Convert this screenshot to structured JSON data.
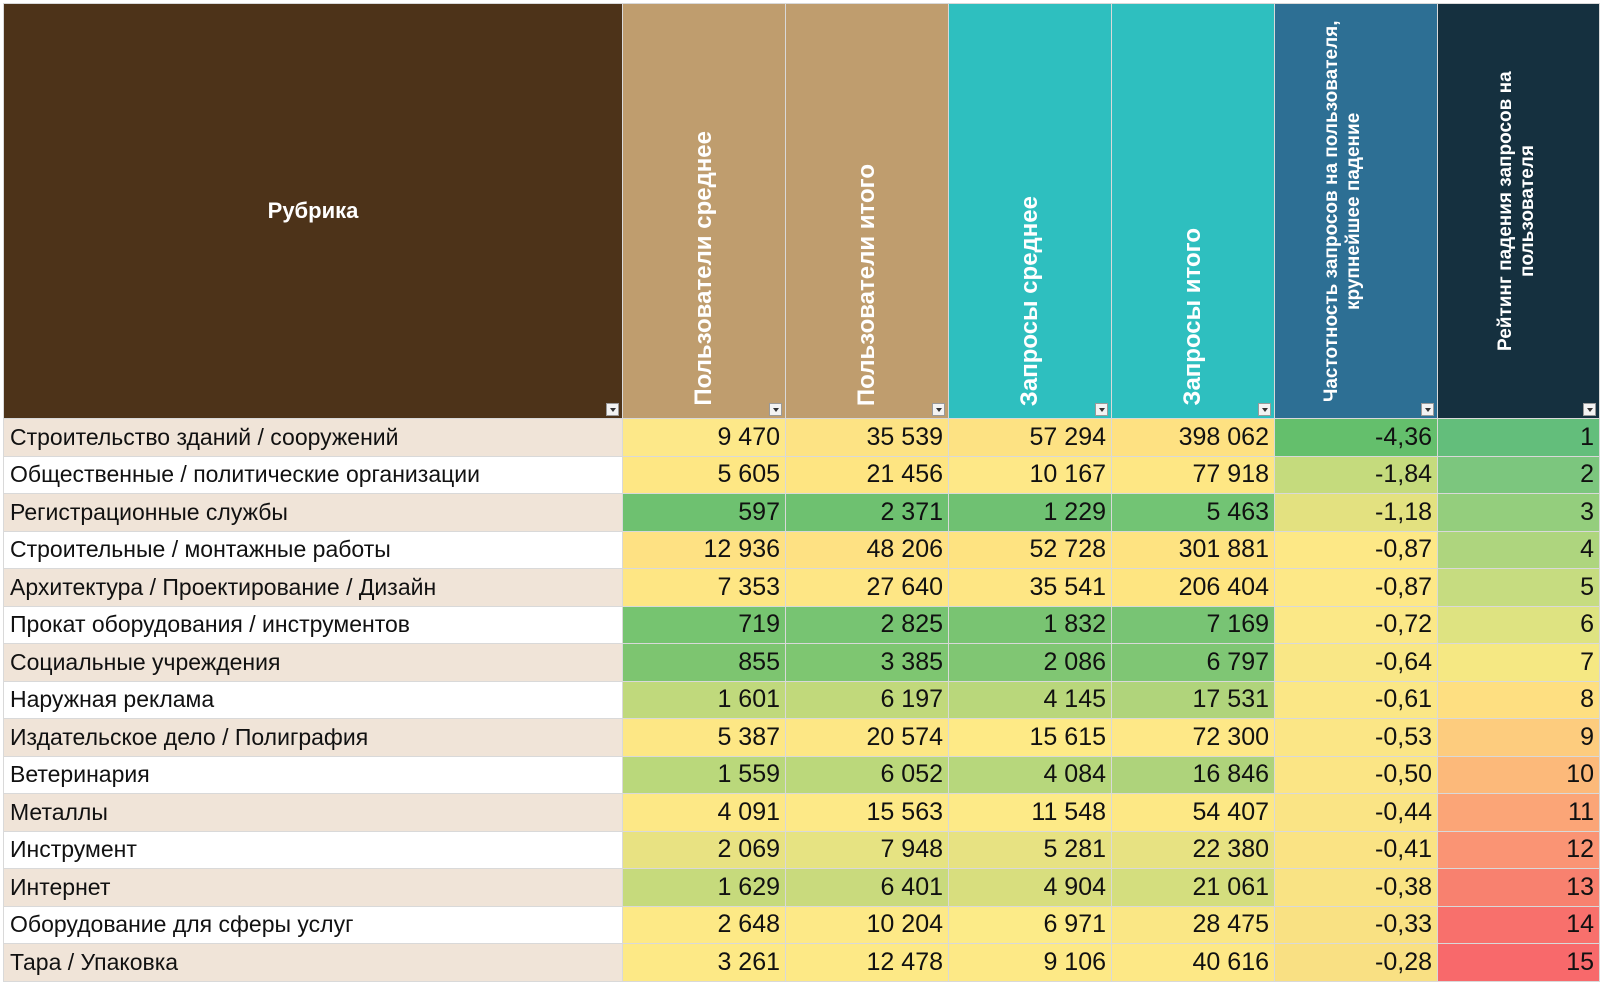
{
  "table": {
    "headers": [
      "Рубрика",
      "Пользователи среднее",
      "Пользователи итого",
      "Запросы среднее",
      "Запросы итого",
      "Частотность запросов на пользователя, крупнейшее падение",
      "Рейтинг падения запросов на пользователя"
    ],
    "header_colors": [
      "#4d3319",
      "#bf9d6e",
      "#bf9d6e",
      "#2ebfbf",
      "#2ebfbf",
      "#2d6f94",
      "#15303f"
    ],
    "rows": [
      [
        "Строительство зданий / сооружений",
        "9 470",
        "35 539",
        "57 294",
        "398 062",
        "-4,36",
        "1"
      ],
      [
        "Общественные / политические организации",
        "5 605",
        "21 456",
        "10 167",
        "77 918",
        "-1,84",
        "2"
      ],
      [
        "Регистрационные службы",
        "597",
        "2 371",
        "1 229",
        "5 463",
        "-1,18",
        "3"
      ],
      [
        "Строительные / монтажные работы",
        "12 936",
        "48 206",
        "52 728",
        "301 881",
        "-0,87",
        "4"
      ],
      [
        "Архитектура / Проектирование / Дизайн",
        "7 353",
        "27 640",
        "35 541",
        "206 404",
        "-0,87",
        "5"
      ],
      [
        "Прокат оборудования / инструментов",
        "719",
        "2 825",
        "1 832",
        "7 169",
        "-0,72",
        "6"
      ],
      [
        "Социальные учреждения",
        "855",
        "3 385",
        "2 086",
        "6 797",
        "-0,64",
        "7"
      ],
      [
        "Наружная реклама",
        "1 601",
        "6 197",
        "4 145",
        "17 531",
        "-0,61",
        "8"
      ],
      [
        "Издательское дело / Полиграфия",
        "5 387",
        "20 574",
        "15 615",
        "72 300",
        "-0,53",
        "9"
      ],
      [
        "Ветеринария",
        "1 559",
        "6 052",
        "4 084",
        "16 846",
        "-0,50",
        "10"
      ],
      [
        "Металлы",
        "4 091",
        "15 563",
        "11 548",
        "54 407",
        "-0,44",
        "11"
      ],
      [
        "Инструмент",
        "2 069",
        "7 948",
        "5 281",
        "22 380",
        "-0,41",
        "12"
      ],
      [
        "Интернет",
        "1 629",
        "6 401",
        "4 904",
        "21 061",
        "-0,38",
        "13"
      ],
      [
        "Оборудование для сферы услуг",
        "2 648",
        "10 204",
        "6 971",
        "28 475",
        "-0,33",
        "14"
      ],
      [
        "Тара / Упаковка",
        "3 261",
        "12 478",
        "9 106",
        "40 616",
        "-0,28",
        "15"
      ]
    ],
    "cell_colors": [
      [
        null,
        "#fde889",
        "#fde384",
        "#fde283",
        "#fee182",
        "#64bf6c",
        "#63be7b"
      ],
      [
        null,
        "#fee784",
        "#fee582",
        "#fee887",
        "#fee784",
        "#c5db7d",
        "#7cc67e"
      ],
      [
        null,
        "#6ec170",
        "#6ec170",
        "#6fc172",
        "#72c474",
        "#e3e180",
        "#94ce7d"
      ],
      [
        null,
        "#fee183",
        "#fee183",
        "#fee381",
        "#fee381",
        "#fde886",
        "#aed57e"
      ],
      [
        null,
        "#fee684",
        "#fee685",
        "#fee684",
        "#fee581",
        "#fde887",
        "#c6dc80"
      ],
      [
        null,
        "#76c470",
        "#77c472",
        "#79c472",
        "#78c474",
        "#fbe887",
        "#dee381"
      ],
      [
        null,
        "#7dc570",
        "#7ec671",
        "#80c673",
        "#7fc674",
        "#f9e786",
        "#f5e883"
      ],
      [
        null,
        "#c0d97c",
        "#c1d97b",
        "#b9d77b",
        "#b0d47b",
        "#fbe786",
        "#fedf81"
      ],
      [
        null,
        "#fde785",
        "#fde785",
        "#feea86",
        "#fee887",
        "#fbe686",
        "#fdcc7e"
      ],
      [
        null,
        "#bad87b",
        "#bbd87b",
        "#b7d77c",
        "#aed37b",
        "#fbe585",
        "#fcb97a"
      ],
      [
        null,
        "#fde886",
        "#fde987",
        "#fdea87",
        "#fde885",
        "#fae485",
        "#fba577"
      ],
      [
        null,
        "#e8e282",
        "#e6e382",
        "#e7e282",
        "#e7e282",
        "#fae384",
        "#fa9474"
      ],
      [
        null,
        "#c6da7c",
        "#c9da7d",
        "#d8de7e",
        "#d4de7e",
        "#f9e384",
        "#f8816f"
      ],
      [
        null,
        "#fde986",
        "#fde987",
        "#fceb88",
        "#fae785",
        "#f9e183",
        "#f8706c"
      ],
      [
        null,
        "#fde986",
        "#fde986",
        "#fde986",
        "#fde886",
        "#f9e083",
        "#f8696b"
      ]
    ]
  }
}
